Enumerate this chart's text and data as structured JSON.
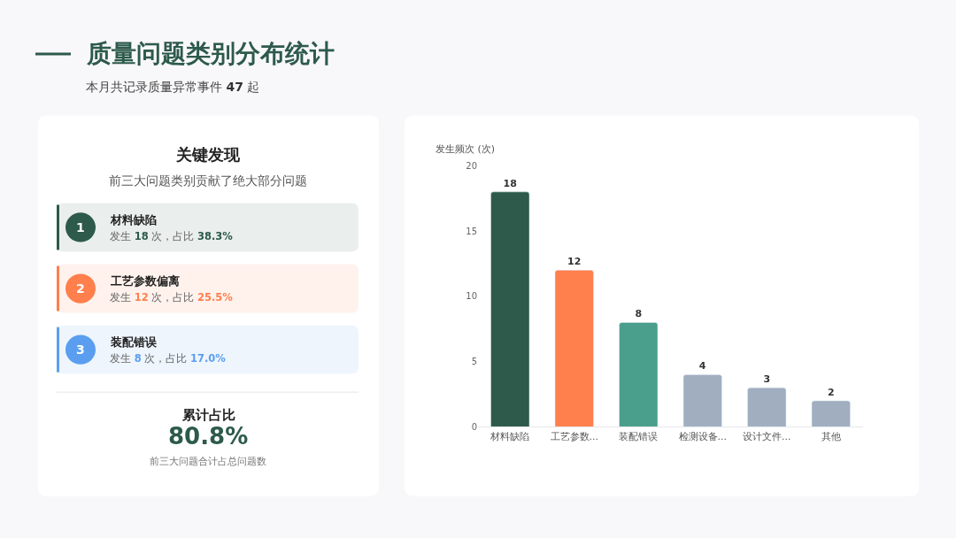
{
  "chart_data": [
    {
      "type": "other",
      "title": "质量问题类别分布统计",
      "subtitle": "本月共记录质量异常事件 47 起"
    },
    {
      "type": "other",
      "title": "关键发现",
      "subtitle": "前三大问题类别贡献了绝大部分问题",
      "annotations": [
        "1",
        "材料缺陷",
        "发生 18 次，占比 38.3%",
        "2",
        "工艺参数偏离",
        "发生 12 次，占比 25.5%",
        "3",
        "装配错误",
        "发生 8 次，占比 17.0%",
        "累计占比",
        "80.8%",
        "前三大问题合计占总问题数"
      ],
      "colors": [
        "#2d5a4b",
        "#ff7f4d",
        "#5b9ef0"
      ]
    },
    {
      "type": "bar",
      "ylabel": "发生频次 (次)",
      "categories": [
        "材料缺陷",
        "工艺参数...",
        "装配错误",
        "检测设备...",
        "设计文件...",
        "其他"
      ],
      "values": [
        18,
        12,
        8,
        4,
        3,
        2
      ],
      "colors": [
        "#2d5a4b",
        "#ff7f4d",
        "#4a9e8c",
        "#a0aec0",
        "#a0aec0",
        "#a0aec0"
      ],
      "ylim": [
        0,
        20
      ],
      "yticks": [
        0,
        5,
        10,
        15,
        20
      ],
      "grid": false,
      "data_labels": true
    }
  ]
}
